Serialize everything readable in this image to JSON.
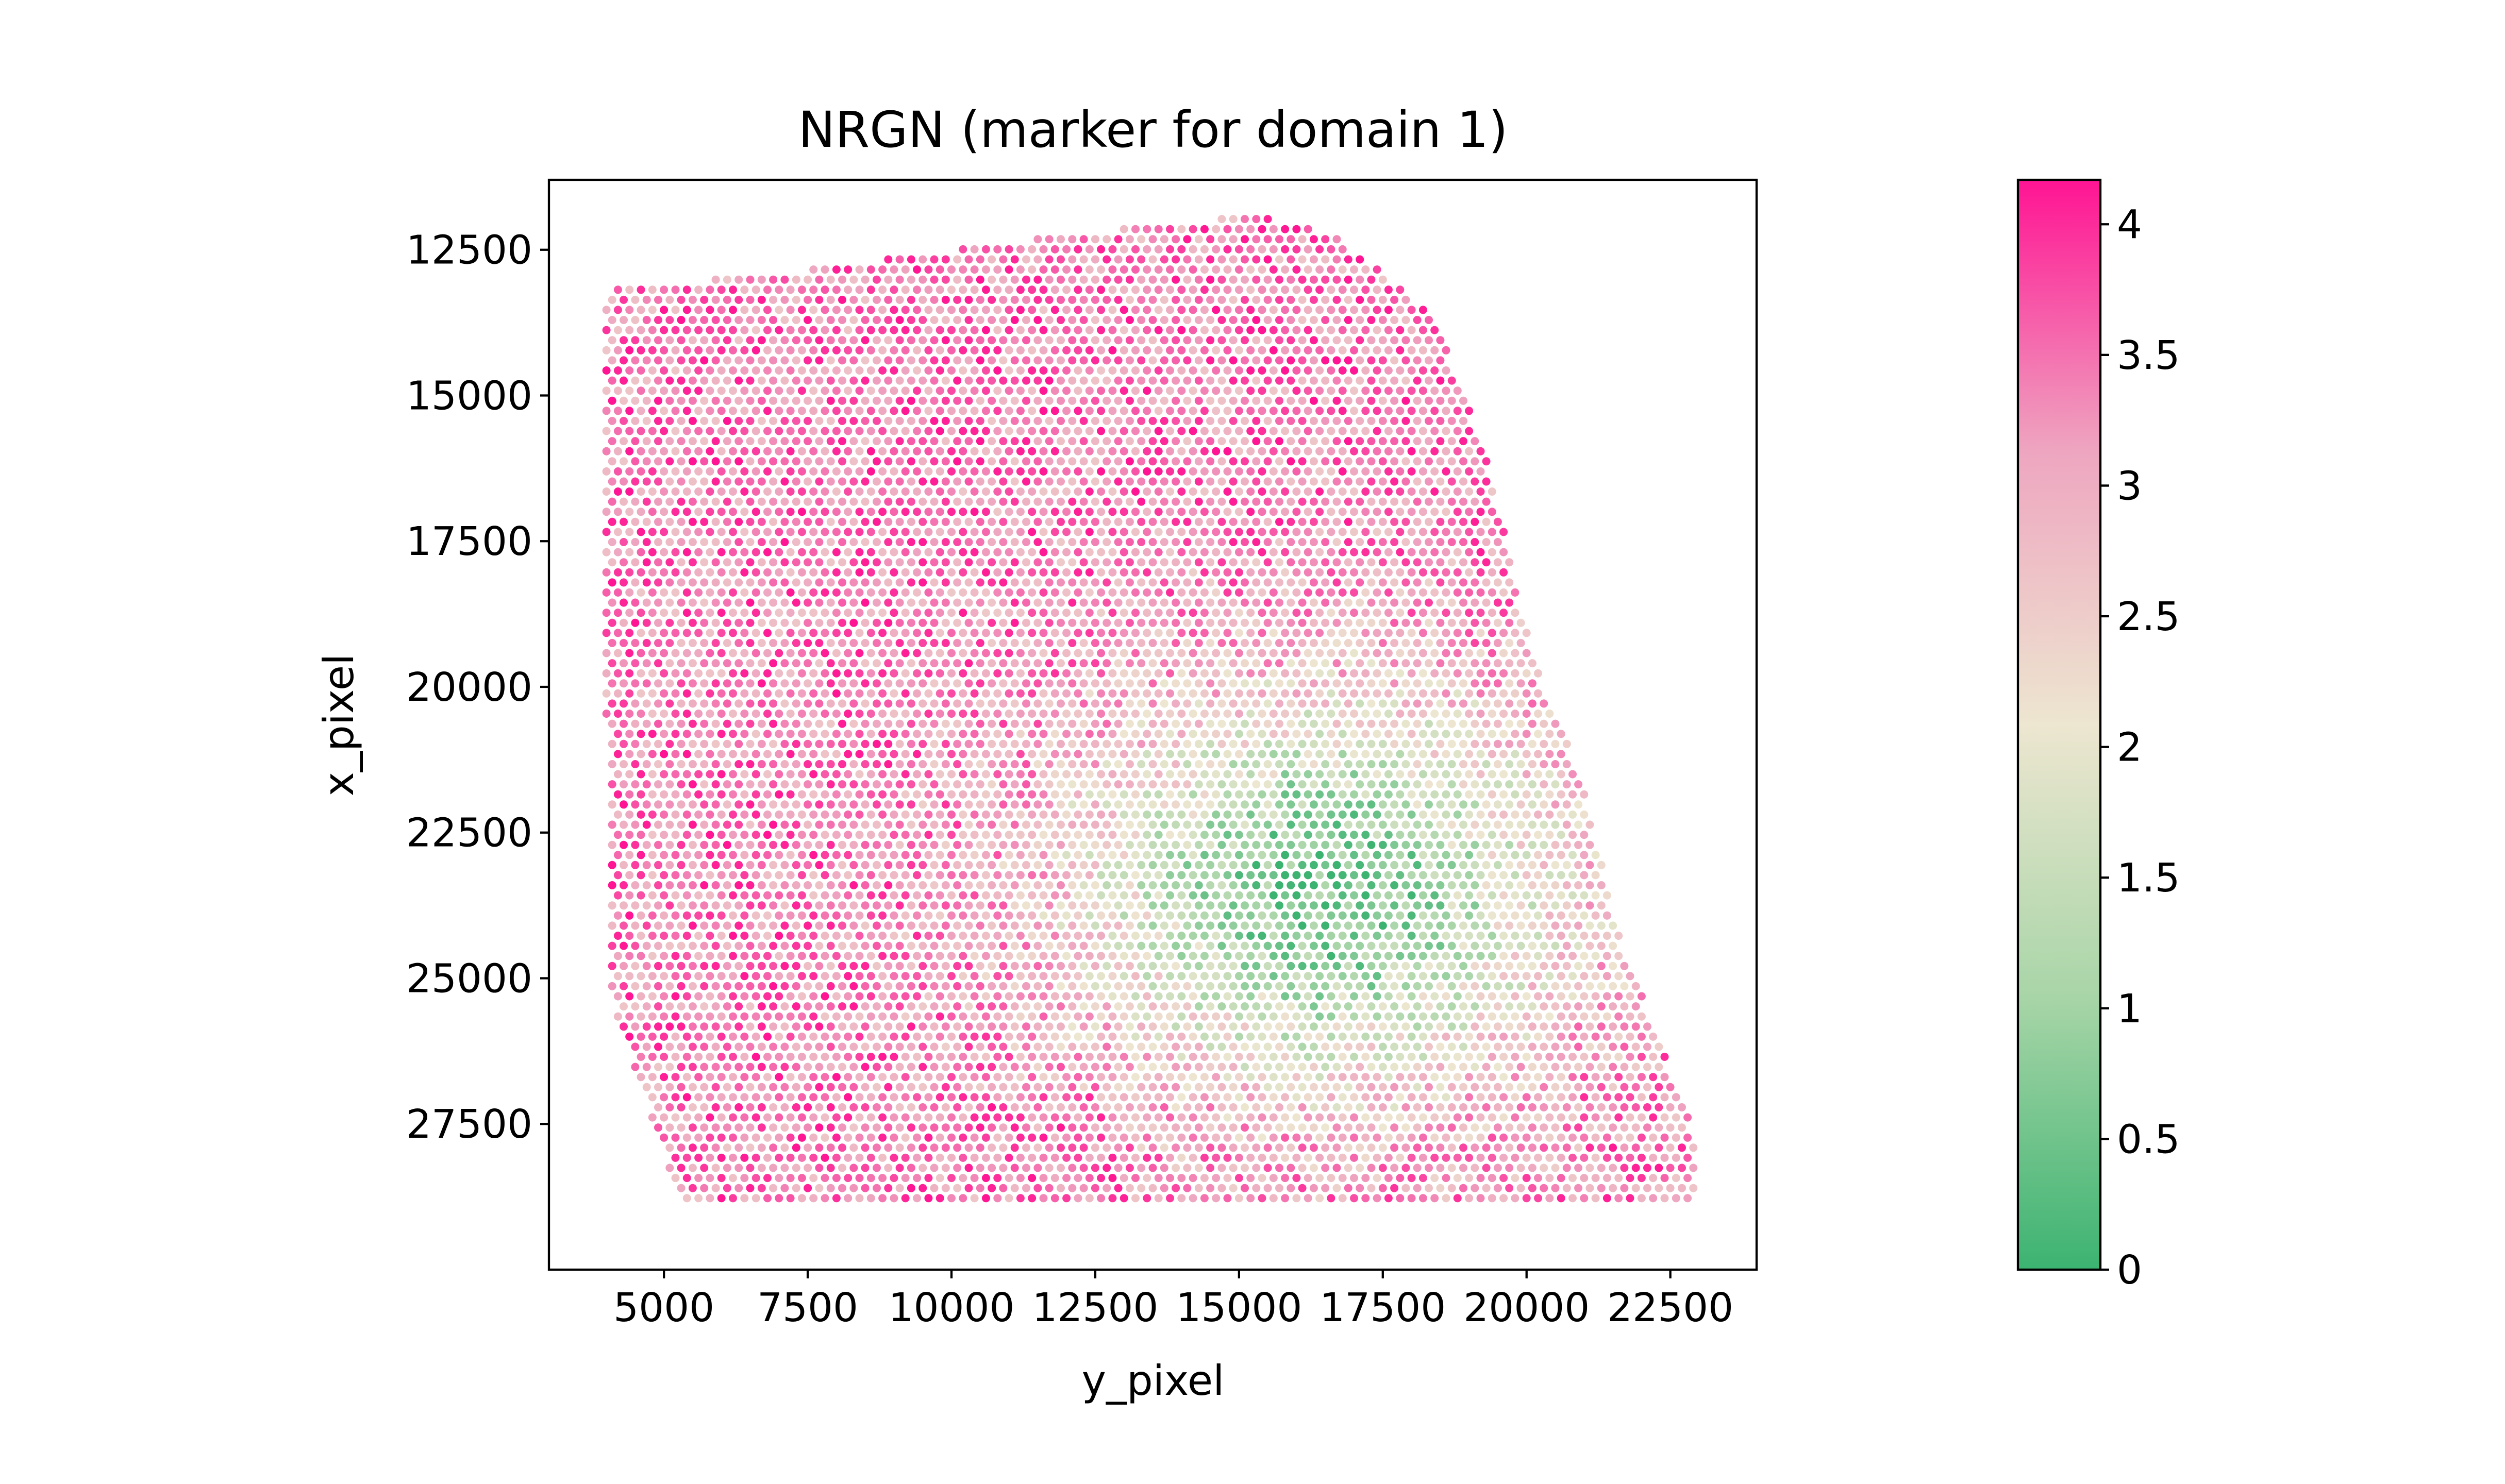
{
  "chart_data": {
    "type": "scatter",
    "title": "NRGN (marker for domain 1)",
    "xlabel": "y_pixel",
    "ylabel": "x_pixel",
    "xlim": [
      3000,
      24000
    ],
    "ylim": [
      30000,
      11300
    ],
    "y_inverted": true,
    "xticks": [
      5000,
      7500,
      10000,
      12500,
      15000,
      17500,
      20000,
      22500
    ],
    "xtick_labels": [
      "5000",
      "7500",
      "10000",
      "12500",
      "15000",
      "17500",
      "20000",
      "22500"
    ],
    "yticks": [
      12500,
      15000,
      17500,
      20000,
      22500,
      25000,
      27500
    ],
    "ytick_labels": [
      "12500",
      "15000",
      "17500",
      "20000",
      "22500",
      "25000",
      "27500"
    ],
    "grid": false,
    "point_spacing": 200,
    "tissue_outline": [
      [
        4000,
        13200
      ],
      [
        7800,
        12800
      ],
      [
        12400,
        12200
      ],
      [
        15400,
        11900
      ],
      [
        16700,
        12300
      ],
      [
        18400,
        13600
      ],
      [
        19300,
        16000
      ],
      [
        19800,
        18200
      ],
      [
        20300,
        20000
      ],
      [
        20900,
        21400
      ],
      [
        21600,
        24200
      ],
      [
        22300,
        26000
      ],
      [
        22900,
        27600
      ],
      [
        23000,
        28800
      ],
      [
        5300,
        28900
      ],
      [
        4100,
        25400
      ],
      [
        3950,
        18000
      ]
    ],
    "expression_field": {
      "description": "NRGN log-normalized expression per spot; high (pink) in upper-left cortical region and lower band, low (green) in central-lower-right region",
      "low_center": [
        16500,
        23500
      ],
      "baseline_high": 3.4
    },
    "colorbar": {
      "range": [
        0,
        4.17
      ],
      "ticks": [
        0,
        0.5,
        1,
        1.5,
        2,
        2.5,
        3,
        3.5,
        4
      ],
      "tick_labels": [
        "0",
        "0.5",
        "1",
        "1.5",
        "2",
        "2.5",
        "3",
        "3.5",
        "4"
      ],
      "colors": [
        "#3cb371",
        "#a8d5a8",
        "#ede6d0",
        "#eea6c0",
        "#ff1493"
      ]
    }
  }
}
